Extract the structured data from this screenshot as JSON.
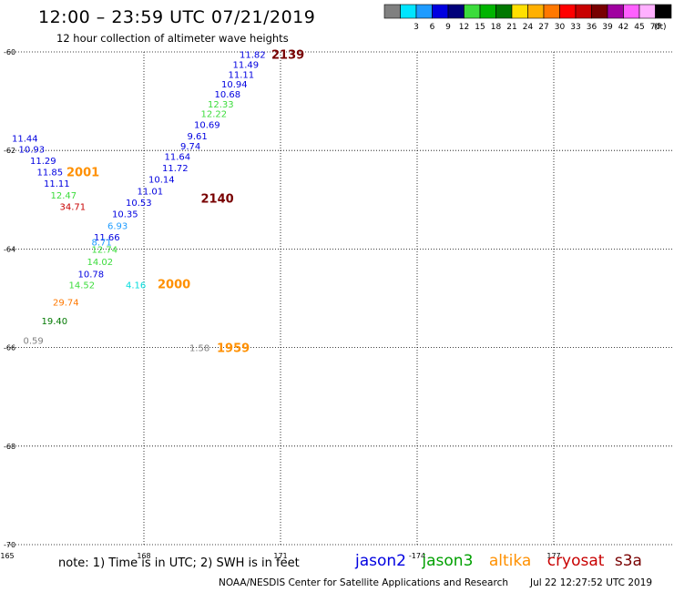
{
  "header": {
    "title": "12:00 – 23:59 UTC 07/21/2019",
    "subtitle": "12 hour collection of altimeter wave heights"
  },
  "legend": {
    "unit": "(ft)",
    "swatches": [
      {
        "color": "#808080",
        "label": ""
      },
      {
        "color": "#00e5ff",
        "label": "3"
      },
      {
        "color": "#1e9bff",
        "label": "6"
      },
      {
        "color": "#0000e0",
        "label": "9"
      },
      {
        "color": "#00007a",
        "label": "12"
      },
      {
        "color": "#3cdc3c",
        "label": "15"
      },
      {
        "color": "#00b400",
        "label": "18"
      },
      {
        "color": "#007800",
        "label": "21"
      },
      {
        "color": "#ffe000",
        "label": "24"
      },
      {
        "color": "#ffb000",
        "label": "27"
      },
      {
        "color": "#ff7800",
        "label": "30"
      },
      {
        "color": "#ff0000",
        "label": "33"
      },
      {
        "color": "#c80000",
        "label": "36"
      },
      {
        "color": "#780000",
        "label": "39"
      },
      {
        "color": "#a000a0",
        "label": "42"
      },
      {
        "color": "#ff60ff",
        "label": "45"
      },
      {
        "color": "#ffb0ff",
        "label": "70"
      },
      {
        "color": "#000000",
        "label": ""
      }
    ]
  },
  "chart_data": {
    "type": "scatter",
    "title": "12:00 – 23:59 UTC 07/21/2019",
    "subtitle": "12 hour collection of altimeter wave heights",
    "xlim": [
      165,
      179
    ],
    "ylim": [
      -70,
      -60
    ],
    "x_ticks": [
      {
        "v": 165,
        "label": "165"
      },
      {
        "v": 168,
        "label": "168"
      },
      {
        "v": 171,
        "label": "171"
      },
      {
        "v": 174,
        "label": "-174"
      },
      {
        "v": 177,
        "label": "177"
      }
    ],
    "y_ticks": [
      {
        "v": -60,
        "label": "-60"
      },
      {
        "v": -62,
        "label": "-62"
      },
      {
        "v": -64,
        "label": "-64"
      },
      {
        "v": -66,
        "label": "-66"
      },
      {
        "v": -68,
        "label": "-68"
      },
      {
        "v": -70,
        "label": "-70"
      }
    ],
    "grid": true,
    "swh_labels": [
      {
        "lon": 170.1,
        "lat": -60.05,
        "text": "11.82",
        "color": "#0000e0"
      },
      {
        "lon": 169.95,
        "lat": -60.25,
        "text": "11.49",
        "color": "#0000e0"
      },
      {
        "lon": 169.85,
        "lat": -60.45,
        "text": "11.11",
        "color": "#0000e0"
      },
      {
        "lon": 169.7,
        "lat": -60.65,
        "text": "10.94",
        "color": "#0000e0"
      },
      {
        "lon": 169.55,
        "lat": -60.85,
        "text": "10.68",
        "color": "#0000e0"
      },
      {
        "lon": 169.4,
        "lat": -61.05,
        "text": "12.33",
        "color": "#3cdc3c"
      },
      {
        "lon": 169.25,
        "lat": -61.25,
        "text": "12.22",
        "color": "#3cdc3c"
      },
      {
        "lon": 169.1,
        "lat": -61.47,
        "text": "10.69",
        "color": "#0000e0"
      },
      {
        "lon": 168.95,
        "lat": -61.7,
        "text": "9.61",
        "color": "#0000e0"
      },
      {
        "lon": 168.8,
        "lat": -61.9,
        "text": "9.74",
        "color": "#0000e0"
      },
      {
        "lon": 168.45,
        "lat": -62.12,
        "text": "11.64",
        "color": "#0000e0"
      },
      {
        "lon": 168.4,
        "lat": -62.35,
        "text": "11.72",
        "color": "#0000e0"
      },
      {
        "lon": 168.1,
        "lat": -62.58,
        "text": "10.14",
        "color": "#0000e0"
      },
      {
        "lon": 167.85,
        "lat": -62.82,
        "text": "11.01",
        "color": "#0000e0"
      },
      {
        "lon": 167.6,
        "lat": -63.05,
        "text": "10.53",
        "color": "#0000e0"
      },
      {
        "lon": 167.3,
        "lat": -63.28,
        "text": "10.35",
        "color": "#0000e0"
      },
      {
        "lon": 167.2,
        "lat": -63.52,
        "text": "6.93",
        "color": "#1e9bff"
      },
      {
        "lon": 166.9,
        "lat": -63.75,
        "text": "11.66",
        "color": "#0000e0"
      },
      {
        "lon": 166.85,
        "lat": -63.85,
        "text": "8.71",
        "color": "#1e9bff"
      },
      {
        "lon": 166.85,
        "lat": -64.0,
        "text": "12.74",
        "color": "#3cdc3c"
      },
      {
        "lon": 166.75,
        "lat": -64.25,
        "text": "14.02",
        "color": "#3cdc3c"
      },
      {
        "lon": 166.55,
        "lat": -64.5,
        "text": "10.78",
        "color": "#0000e0"
      },
      {
        "lon": 166.35,
        "lat": -64.72,
        "text": "14.52",
        "color": "#3cdc3c"
      },
      {
        "lon": 166.0,
        "lat": -65.07,
        "text": "29.74",
        "color": "#ff7800"
      },
      {
        "lon": 165.75,
        "lat": -65.45,
        "text": "19.40",
        "color": "#007800"
      },
      {
        "lon": 165.35,
        "lat": -65.85,
        "text": "0.59",
        "color": "#808080"
      },
      {
        "lon": 165.1,
        "lat": -61.75,
        "text": "11.44",
        "color": "#0000e0"
      },
      {
        "lon": 165.25,
        "lat": -61.97,
        "text": "10.93",
        "color": "#0000e0"
      },
      {
        "lon": 165.5,
        "lat": -62.2,
        "text": "11.29",
        "color": "#0000e0"
      },
      {
        "lon": 165.65,
        "lat": -62.43,
        "text": "11.85",
        "color": "#0000e0"
      },
      {
        "lon": 165.8,
        "lat": -62.66,
        "text": "11.11",
        "color": "#0000e0"
      },
      {
        "lon": 165.95,
        "lat": -62.9,
        "text": "12.47",
        "color": "#3cdc3c"
      },
      {
        "lon": 166.15,
        "lat": -63.13,
        "text": "34.71",
        "color": "#c80000"
      },
      {
        "lon": 167.6,
        "lat": -64.72,
        "text": "4.16",
        "color": "#00dcdc"
      },
      {
        "lon": 169.0,
        "lat": -66.0,
        "text": "1.58",
        "color": "#808080"
      }
    ],
    "time_labels": [
      {
        "lon": 170.8,
        "lat": -60.05,
        "text": "2139",
        "color": "#780000"
      },
      {
        "lon": 169.25,
        "lat": -62.97,
        "text": "2140",
        "color": "#780000"
      },
      {
        "lon": 166.3,
        "lat": -62.43,
        "text": "2001",
        "color": "#ff9000"
      },
      {
        "lon": 168.3,
        "lat": -64.7,
        "text": "2000",
        "color": "#ff9000"
      },
      {
        "lon": 169.6,
        "lat": -66.0,
        "text": "1959",
        "color": "#ff9000"
      }
    ]
  },
  "footer": {
    "note": "note: 1) Time is in UTC; 2) SWH is in feet",
    "missions": [
      {
        "name": "jason2",
        "color": "#0000e0"
      },
      {
        "name": "jason3",
        "color": "#00a000"
      },
      {
        "name": "altika",
        "color": "#ff9000"
      },
      {
        "name": "cryosat",
        "color": "#c80000"
      },
      {
        "name": "s3a",
        "color": "#780000"
      }
    ],
    "credit": "NOAA/NESDIS Center for Satellite Applications and Research",
    "timestamp": "Jul 22 12:27:52 UTC 2019"
  }
}
